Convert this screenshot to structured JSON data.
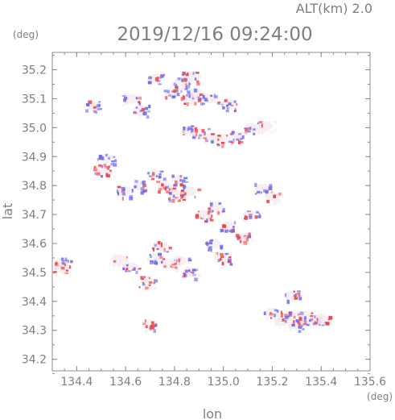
{
  "chart_data": {
    "type": "scatter",
    "top_label": "ALT(km) 2.0",
    "title": "2019/12/16 09:24:00",
    "xlabel": "lon",
    "ylabel": "lat",
    "x_unit": "(deg)",
    "y_unit": "(deg)",
    "xlim": [
      134.3,
      135.6
    ],
    "ylim": [
      34.16,
      35.26
    ],
    "x_ticks": [
      "134.4",
      "134.6",
      "134.8",
      "135.0",
      "135.2",
      "135.4",
      "135.6"
    ],
    "y_ticks": [
      "35.2",
      "35.1",
      "35.0",
      "34.9",
      "34.8",
      "34.7",
      "34.6",
      "34.5",
      "34.4",
      "34.3",
      "34.2"
    ],
    "grid": false,
    "colors": {
      "positive": "#e8484b",
      "negative": "#6e6ef0",
      "neutral": "#f6ecee",
      "axis": "#8c8c8c"
    },
    "clusters": [
      {
        "lon": 134.34,
        "lat": 34.535,
        "polarity": "negative"
      },
      {
        "lon": 134.34,
        "lat": 34.515,
        "polarity": "positive"
      },
      {
        "lon": 134.5,
        "lat": 34.855,
        "polarity": "positive"
      },
      {
        "lon": 134.52,
        "lat": 34.895,
        "polarity": "negative"
      },
      {
        "lon": 134.47,
        "lat": 35.075,
        "polarity": "negative"
      },
      {
        "lon": 134.62,
        "lat": 35.1,
        "polarity": "negative"
      },
      {
        "lon": 134.66,
        "lat": 35.06,
        "polarity": "negative"
      },
      {
        "lon": 134.72,
        "lat": 35.17,
        "polarity": "negative"
      },
      {
        "lon": 134.79,
        "lat": 35.12,
        "polarity": "negative"
      },
      {
        "lon": 134.83,
        "lat": 35.16,
        "polarity": "negative"
      },
      {
        "lon": 134.86,
        "lat": 35.175,
        "polarity": "positive"
      },
      {
        "lon": 134.86,
        "lat": 35.1,
        "polarity": "positive"
      },
      {
        "lon": 134.88,
        "lat": 35.12,
        "polarity": "negative"
      },
      {
        "lon": 134.94,
        "lat": 35.1,
        "polarity": "negative"
      },
      {
        "lon": 135.02,
        "lat": 35.08,
        "polarity": "negative"
      },
      {
        "lon": 134.86,
        "lat": 34.99,
        "polarity": "negative"
      },
      {
        "lon": 134.9,
        "lat": 34.98,
        "polarity": "positive"
      },
      {
        "lon": 134.95,
        "lat": 34.965,
        "polarity": "negative"
      },
      {
        "lon": 135.0,
        "lat": 34.96,
        "polarity": "positive"
      },
      {
        "lon": 135.06,
        "lat": 34.97,
        "polarity": "negative"
      },
      {
        "lon": 135.12,
        "lat": 35.0,
        "polarity": "negative"
      },
      {
        "lon": 135.17,
        "lat": 35.005,
        "polarity": "neutral"
      },
      {
        "lon": 134.59,
        "lat": 34.78,
        "polarity": "negative"
      },
      {
        "lon": 134.66,
        "lat": 34.8,
        "polarity": "negative"
      },
      {
        "lon": 134.72,
        "lat": 34.84,
        "polarity": "negative"
      },
      {
        "lon": 134.76,
        "lat": 34.8,
        "polarity": "positive"
      },
      {
        "lon": 134.8,
        "lat": 34.77,
        "polarity": "positive"
      },
      {
        "lon": 134.82,
        "lat": 34.82,
        "polarity": "negative"
      },
      {
        "lon": 134.86,
        "lat": 34.78,
        "polarity": "negative"
      },
      {
        "lon": 134.92,
        "lat": 34.7,
        "polarity": "positive"
      },
      {
        "lon": 134.97,
        "lat": 34.73,
        "polarity": "negative"
      },
      {
        "lon": 135.02,
        "lat": 34.66,
        "polarity": "negative"
      },
      {
        "lon": 135.08,
        "lat": 34.62,
        "polarity": "positive"
      },
      {
        "lon": 135.11,
        "lat": 34.7,
        "polarity": "negative"
      },
      {
        "lon": 135.16,
        "lat": 34.79,
        "polarity": "negative"
      },
      {
        "lon": 135.2,
        "lat": 34.76,
        "polarity": "neutral"
      },
      {
        "lon": 134.96,
        "lat": 34.6,
        "polarity": "negative"
      },
      {
        "lon": 134.99,
        "lat": 34.55,
        "polarity": "positive"
      },
      {
        "lon": 134.72,
        "lat": 34.55,
        "polarity": "negative"
      },
      {
        "lon": 134.74,
        "lat": 34.59,
        "polarity": "positive"
      },
      {
        "lon": 134.78,
        "lat": 34.53,
        "polarity": "neutral"
      },
      {
        "lon": 134.82,
        "lat": 34.54,
        "polarity": "positive"
      },
      {
        "lon": 134.86,
        "lat": 34.5,
        "polarity": "negative"
      },
      {
        "lon": 134.69,
        "lat": 34.47,
        "polarity": "positive"
      },
      {
        "lon": 134.62,
        "lat": 34.52,
        "polarity": "negative"
      },
      {
        "lon": 134.57,
        "lat": 34.545,
        "polarity": "neutral"
      },
      {
        "lon": 134.7,
        "lat": 34.32,
        "polarity": "positive"
      },
      {
        "lon": 135.2,
        "lat": 34.36,
        "polarity": "negative"
      },
      {
        "lon": 135.24,
        "lat": 34.33,
        "polarity": "neutral"
      },
      {
        "lon": 135.27,
        "lat": 34.35,
        "polarity": "positive"
      },
      {
        "lon": 135.3,
        "lat": 34.32,
        "polarity": "negative"
      },
      {
        "lon": 135.33,
        "lat": 34.35,
        "polarity": "positive"
      },
      {
        "lon": 135.36,
        "lat": 34.33,
        "polarity": "negative"
      },
      {
        "lon": 135.4,
        "lat": 34.34,
        "polarity": "positive"
      },
      {
        "lon": 135.28,
        "lat": 34.42,
        "polarity": "negative"
      }
    ]
  }
}
